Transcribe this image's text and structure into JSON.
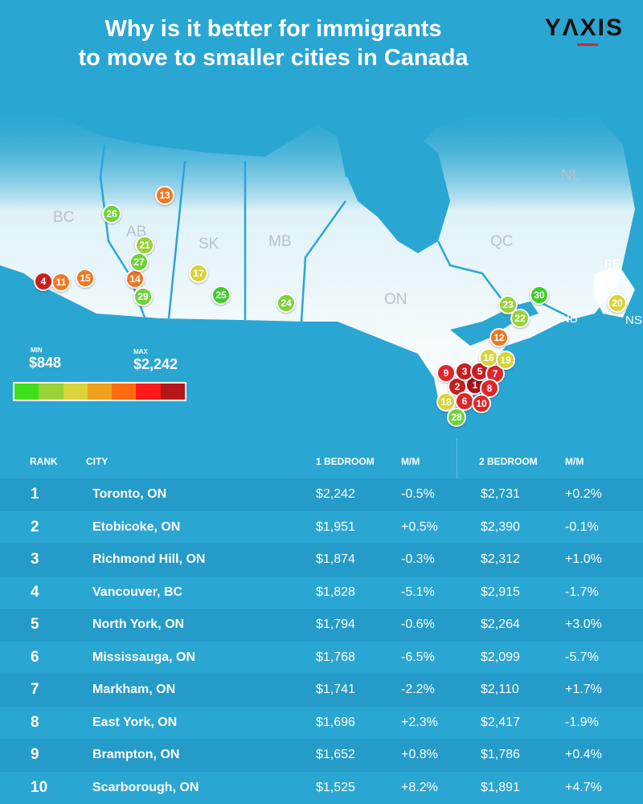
{
  "header": {
    "title_line1": "Why is it better for immigrants",
    "title_line2": "to move to smaller cities in Canada",
    "logo": "YΛXIS"
  },
  "map": {
    "provinces": [
      "BC",
      "AB",
      "SK",
      "MB",
      "ON",
      "QC",
      "NL",
      "PE",
      "NB",
      "NS"
    ],
    "markers": [
      {
        "rank": "1",
        "color": "#a5151a"
      },
      {
        "rank": "2",
        "color": "#c81e1e"
      },
      {
        "rank": "3",
        "color": "#c81e1e"
      },
      {
        "rank": "4",
        "color": "#c81e1e"
      },
      {
        "rank": "5",
        "color": "#c81e1e"
      },
      {
        "rank": "6",
        "color": "#e0262a"
      },
      {
        "rank": "7",
        "color": "#e0262a"
      },
      {
        "rank": "8",
        "color": "#e0262a"
      },
      {
        "rank": "9",
        "color": "#e0262a"
      },
      {
        "rank": "10",
        "color": "#e0262a"
      },
      {
        "rank": "11",
        "color": "#f07824"
      },
      {
        "rank": "12",
        "color": "#f07824"
      },
      {
        "rank": "13",
        "color": "#f07824"
      },
      {
        "rank": "14",
        "color": "#f07824"
      },
      {
        "rank": "15",
        "color": "#f07824"
      },
      {
        "rank": "16",
        "color": "#d8d43a"
      },
      {
        "rank": "17",
        "color": "#d8d43a"
      },
      {
        "rank": "18",
        "color": "#d8d43a"
      },
      {
        "rank": "19",
        "color": "#d8d43a"
      },
      {
        "rank": "20",
        "color": "#d8d43a"
      },
      {
        "rank": "21",
        "color": "#9ad23a"
      },
      {
        "rank": "22",
        "color": "#9ad23a"
      },
      {
        "rank": "23",
        "color": "#9ad23a"
      },
      {
        "rank": "24",
        "color": "#7fd33a"
      },
      {
        "rank": "25",
        "color": "#3fcc2a"
      },
      {
        "rank": "26",
        "color": "#6fd23a"
      },
      {
        "rank": "27",
        "color": "#6fd23a"
      },
      {
        "rank": "28",
        "color": "#6fd23a"
      },
      {
        "rank": "29",
        "color": "#6fd23a"
      },
      {
        "rank": "30",
        "color": "#3fcc2a"
      }
    ]
  },
  "legend": {
    "min_label": "MIN",
    "min_value": "$848",
    "max_label": "MAX",
    "max_value": "$2,242",
    "colors": [
      "#3fe01a",
      "#9ad23a",
      "#d8d43a",
      "#f0a020",
      "#ff6a10",
      "#ff1a1a",
      "#b5161a"
    ]
  },
  "table": {
    "headers": [
      "RANK",
      "CITY",
      "1 BEDROOM",
      "M/M",
      "2 BEDROOM",
      "M/M"
    ],
    "rows": [
      {
        "rank": "1",
        "city": "Toronto, ON",
        "b1": "$2,242",
        "m1": "-0.5%",
        "b2": "$2,731",
        "m2": "+0.2%"
      },
      {
        "rank": "2",
        "city": "Etobicoke, ON",
        "b1": "$1,951",
        "m1": "+0.5%",
        "b2": "$2,390",
        "m2": "-0.1%"
      },
      {
        "rank": "3",
        "city": "Richmond Hill, ON",
        "b1": "$1,874",
        "m1": "-0.3%",
        "b2": "$2,312",
        "m2": "+1.0%"
      },
      {
        "rank": "4",
        "city": "Vancouver, BC",
        "b1": "$1,828",
        "m1": "-5.1%",
        "b2": "$2,915",
        "m2": "-1.7%"
      },
      {
        "rank": "5",
        "city": "North York, ON",
        "b1": "$1,794",
        "m1": "-0.6%",
        "b2": "$2,264",
        "m2": "+3.0%"
      },
      {
        "rank": "6",
        "city": "Mississauga, ON",
        "b1": "$1,768",
        "m1": "-6.5%",
        "b2": "$2,099",
        "m2": "-5.7%"
      },
      {
        "rank": "7",
        "city": "Markham, ON",
        "b1": "$1,741",
        "m1": "-2.2%",
        "b2": "$2,110",
        "m2": "+1.7%"
      },
      {
        "rank": "8",
        "city": "East York, ON",
        "b1": "$1,696",
        "m1": "+2.3%",
        "b2": "$2,417",
        "m2": "-1.9%"
      },
      {
        "rank": "9",
        "city": "Brampton, ON",
        "b1": "$1,652",
        "m1": "+0.8%",
        "b2": "$1,786",
        "m2": "+0.4%"
      },
      {
        "rank": "10",
        "city": "Scarborough, ON",
        "b1": "$1,525",
        "m1": "+8.2%",
        "b2": "$1,891",
        "m2": "+4.7%"
      }
    ]
  }
}
